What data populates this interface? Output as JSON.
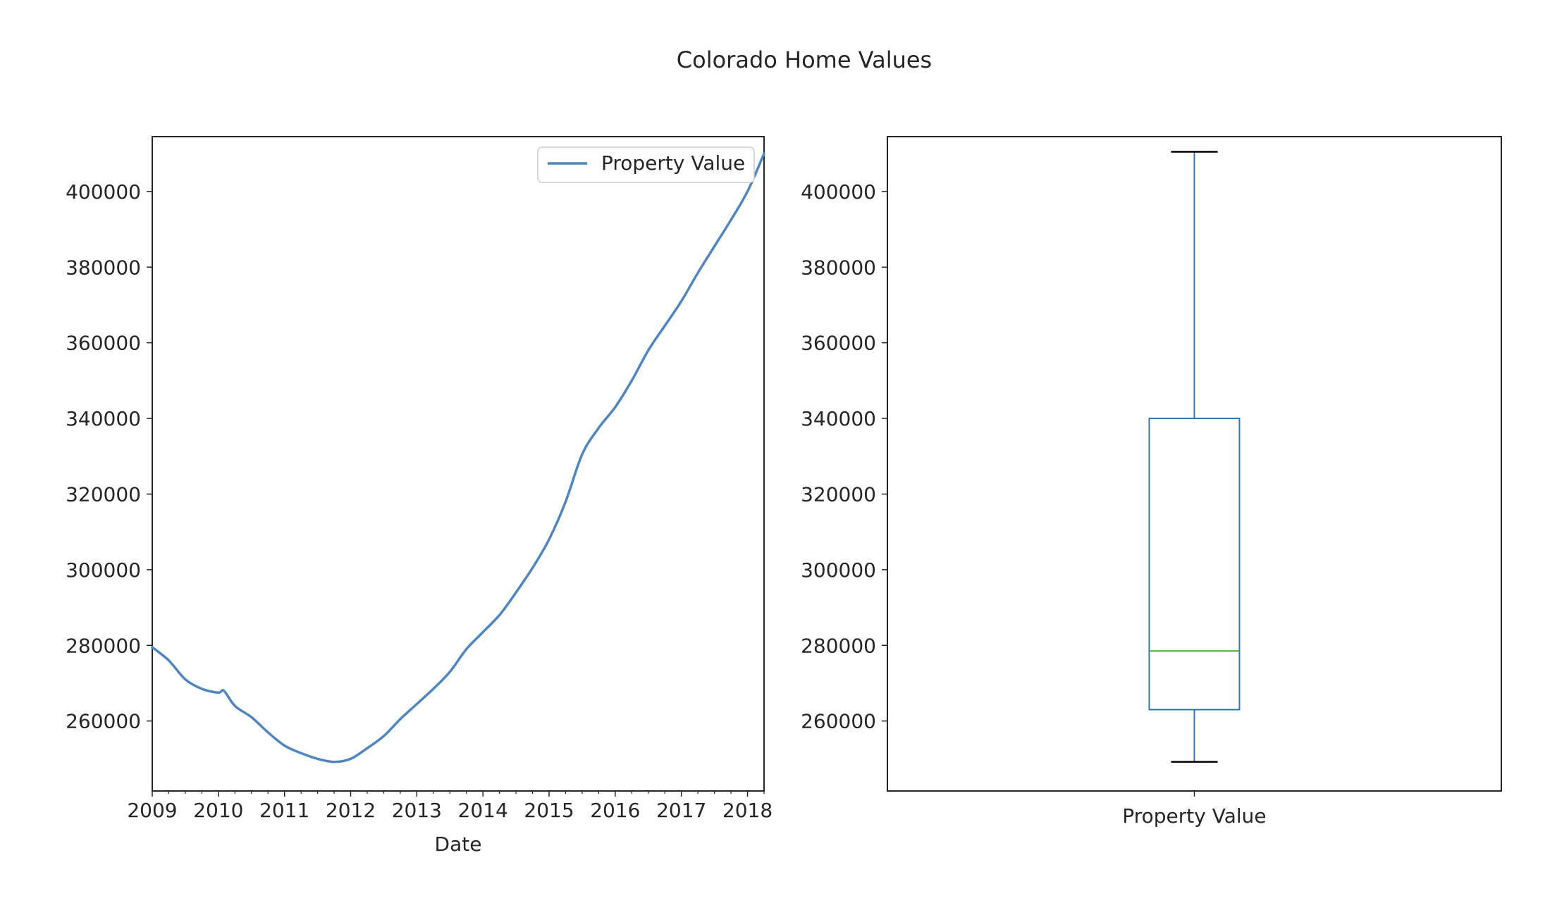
{
  "figure": {
    "suptitle": "Colorado Home Values"
  },
  "colors": {
    "line": "#4f86c0",
    "box": "#2f74b5",
    "median": "#4aa83a",
    "axes": "#262626",
    "legend_border": "#cccccc"
  },
  "chart_data": [
    {
      "type": "line",
      "title": "",
      "xlabel": "Date",
      "ylabel": "",
      "xlim": [
        "2009-01",
        "2018-04"
      ],
      "ylim": [
        241500,
        414500
      ],
      "xticks": [
        "2009",
        "2010",
        "2011",
        "2012",
        "2013",
        "2014",
        "2015",
        "2016",
        "2017",
        "2018"
      ],
      "yticks": [
        260000,
        280000,
        300000,
        320000,
        340000,
        360000,
        380000,
        400000
      ],
      "legend": {
        "position": "top-right",
        "entries": [
          "Property Value"
        ]
      },
      "grid": false,
      "series": [
        {
          "name": "Property Value",
          "x": [
            "2009-01",
            "2009-04",
            "2009-07",
            "2009-10",
            "2010-01",
            "2010-02",
            "2010-04",
            "2010-07",
            "2010-10",
            "2011-01",
            "2011-04",
            "2011-07",
            "2011-10",
            "2012-01",
            "2012-04",
            "2012-07",
            "2012-10",
            "2013-01",
            "2013-04",
            "2013-07",
            "2013-10",
            "2014-01",
            "2014-04",
            "2014-07",
            "2014-10",
            "2015-01",
            "2015-04",
            "2015-07",
            "2015-10",
            "2016-01",
            "2016-04",
            "2016-07",
            "2016-10",
            "2017-01",
            "2017-04",
            "2017-07",
            "2017-10",
            "2018-01",
            "2018-04"
          ],
          "values": [
            279500,
            276000,
            271000,
            268500,
            267500,
            268000,
            264000,
            261000,
            257000,
            253500,
            251500,
            250000,
            249200,
            250000,
            252800,
            256000,
            260500,
            264500,
            268500,
            273000,
            279000,
            283500,
            288000,
            294000,
            300500,
            308000,
            318000,
            330500,
            337500,
            343000,
            350000,
            358000,
            364500,
            371000,
            378500,
            385500,
            392500,
            400000,
            410000
          ]
        }
      ]
    },
    {
      "type": "box",
      "title": "",
      "xlabel": "",
      "ylabel": "",
      "ylim": [
        241500,
        414500
      ],
      "yticks": [
        260000,
        280000,
        300000,
        320000,
        340000,
        360000,
        380000,
        400000
      ],
      "categories": [
        "Property Value"
      ],
      "box": {
        "min": 249200,
        "q1": 263000,
        "median": 278500,
        "q3": 340000,
        "max": 410500
      },
      "grid": false
    }
  ]
}
